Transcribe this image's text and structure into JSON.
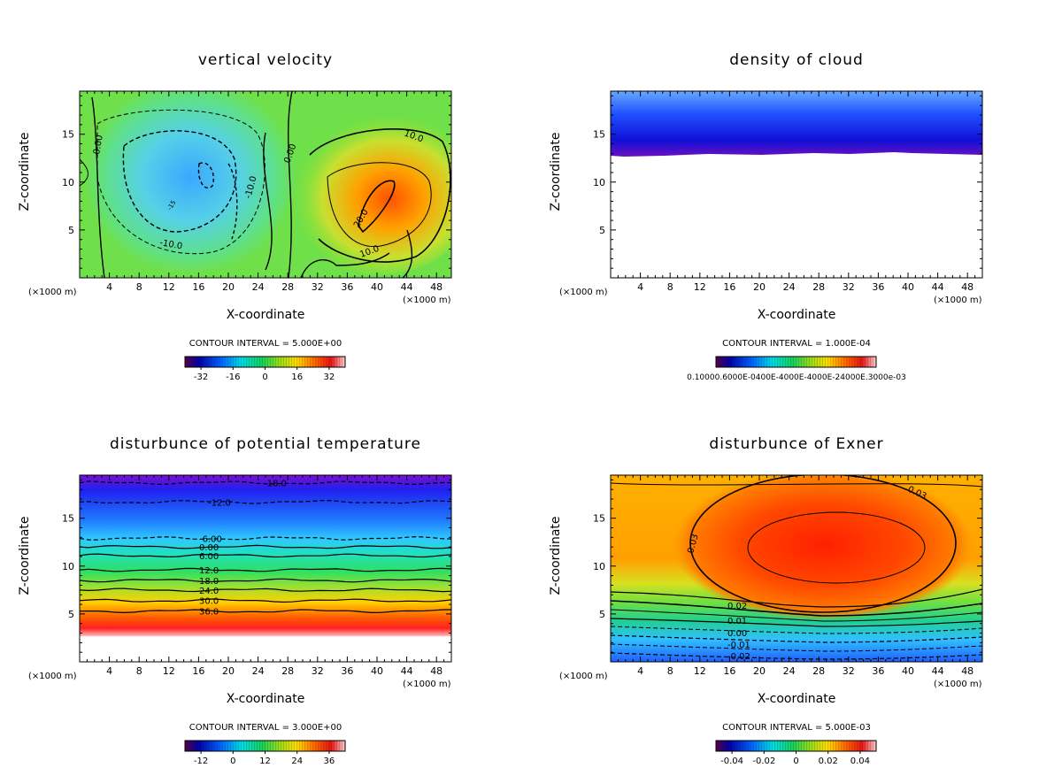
{
  "chart_data": [
    {
      "type": "heatmap",
      "title": "vertical velocity",
      "xlabel": "X-coordinate",
      "ylabel": "Z-coordinate",
      "x_unit_left": "(×1000 m)",
      "x_unit_right": "(×1000 m)",
      "xlim": [
        0,
        50
      ],
      "ylim": [
        0,
        19.5
      ],
      "x_ticks": [
        4,
        8,
        12,
        16,
        20,
        24,
        28,
        32,
        36,
        40,
        44,
        48
      ],
      "y_ticks": [
        5,
        10,
        15
      ],
      "contour_interval": "CONTOUR INTERVAL = 5.000E+00",
      "colorbar_ticks": [
        "-32",
        "-16",
        "0",
        "16",
        "32"
      ],
      "contour_labels": [
        "0.00",
        "-10.0",
        "-10.0",
        "0.00",
        "10.0",
        "20.0",
        "10.0",
        "-15"
      ],
      "features": [
        {
          "kind": "min",
          "x": 16,
          "z": 10.5,
          "value": -25
        },
        {
          "kind": "max",
          "x": 40,
          "z": 10,
          "value": 25
        }
      ]
    },
    {
      "type": "heatmap",
      "title": "density of cloud",
      "xlabel": "X-coordinate",
      "ylabel": "Z-coordinate",
      "x_unit_left": "(×1000 m)",
      "x_unit_right": "(×1000 m)",
      "xlim": [
        0,
        50
      ],
      "ylim": [
        0,
        19.5
      ],
      "x_ticks": [
        4,
        8,
        12,
        16,
        20,
        24,
        28,
        32,
        36,
        40,
        44,
        48
      ],
      "y_ticks": [
        5,
        10,
        15
      ],
      "contour_interval": "CONTOUR INTERVAL = 1.000E-04",
      "colorbar_ticks_text": "0.10000.6000E-0400E-4000E-4000E-24000E.3000e-03",
      "cloud_base_z": 13
    },
    {
      "type": "heatmap",
      "title": "disturbunce of potential temperature",
      "xlabel": "X-coordinate",
      "ylabel": "Z-coordinate",
      "x_unit_left": "(×1000 m)",
      "x_unit_right": "(×1000 m)",
      "xlim": [
        0,
        50
      ],
      "ylim": [
        0,
        19.5
      ],
      "x_ticks": [
        4,
        8,
        12,
        16,
        20,
        24,
        28,
        32,
        36,
        40,
        44,
        48
      ],
      "y_ticks": [
        5,
        10,
        15
      ],
      "contour_interval": "CONTOUR INTERVAL = 3.000E+00",
      "colorbar_ticks": [
        "-12",
        "0",
        "12",
        "24",
        "36"
      ],
      "contour_levels": [
        {
          "label": "-18.0",
          "z": 18.7
        },
        {
          "label": "-12.0",
          "z": 16.7
        },
        {
          "label": "-6.00",
          "z": 12.9
        },
        {
          "label": "0.00",
          "z": 12.0
        },
        {
          "label": "6.00",
          "z": 11.1
        },
        {
          "label": "12.0",
          "z": 9.6
        },
        {
          "label": "18.0",
          "z": 8.5
        },
        {
          "label": "24.0",
          "z": 7.5
        },
        {
          "label": "30.0",
          "z": 6.4
        },
        {
          "label": "36.0",
          "z": 5.3
        }
      ]
    },
    {
      "type": "heatmap",
      "title": "disturbunce of Exner",
      "xlabel": "X-coordinate",
      "ylabel": "Z-coordinate",
      "x_unit_left": "(×1000 m)",
      "x_unit_right": "(×1000 m)",
      "xlim": [
        0,
        50
      ],
      "ylim": [
        0,
        19.5
      ],
      "x_ticks": [
        4,
        8,
        12,
        16,
        20,
        24,
        28,
        32,
        36,
        40,
        44,
        48
      ],
      "y_ticks": [
        5,
        10,
        15
      ],
      "contour_interval": "CONTOUR INTERVAL = 5.000E-03",
      "colorbar_ticks": [
        "-0.04",
        "-0.02",
        "0",
        "0.02",
        "0.04"
      ],
      "contour_labels": [
        "0.03",
        "0.03",
        "0.02",
        "0.01",
        "0.00",
        "-0.01",
        "-0.02"
      ]
    }
  ]
}
